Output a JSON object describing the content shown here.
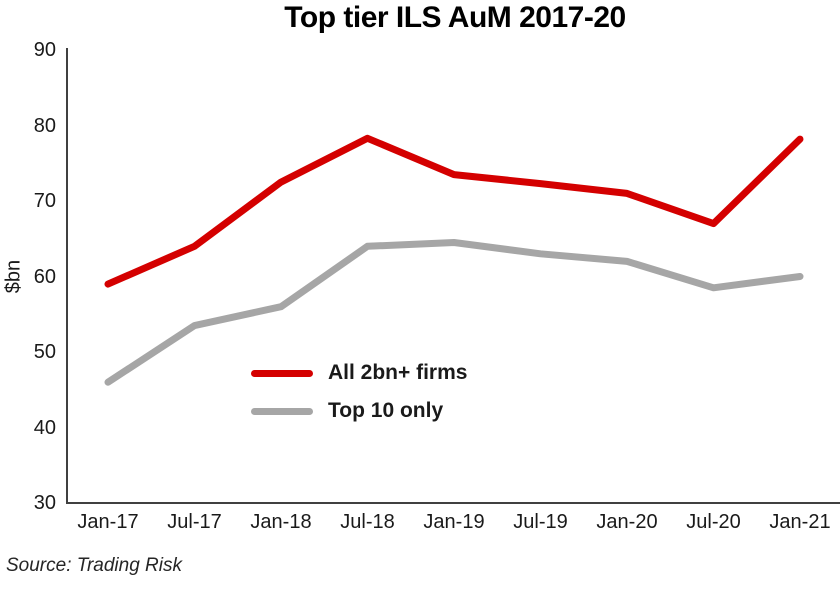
{
  "title": "Top tier ILS AuM 2017-20",
  "source_note": "Source: Trading Risk",
  "colors": {
    "series_red": "#d40000",
    "series_gray": "#a6a6a6",
    "axis": "#404040",
    "text": "#1a1a1a"
  },
  "chart_data": {
    "type": "line",
    "title": "Top tier ILS AuM 2017-20",
    "xlabel": "",
    "ylabel": "$bn",
    "ylim": [
      30,
      90
    ],
    "ytick_step": 10,
    "grid": false,
    "legend_position": "inside-lower-left",
    "categories": [
      "Jan-17",
      "Jul-17",
      "Jan-18",
      "Jul-18",
      "Jan-19",
      "Jul-19",
      "Jan-20",
      "Jul-20",
      "Jan-21"
    ],
    "series": [
      {
        "name": "All 2bn+ firms",
        "color": "#d40000",
        "values": [
          59,
          64,
          72.5,
          78.3,
          73.5,
          72.3,
          71,
          67,
          78.2
        ]
      },
      {
        "name": "Top 10 only",
        "color": "#a6a6a6",
        "values": [
          46,
          53.5,
          56,
          64,
          64.5,
          63,
          62,
          58.5,
          60
        ]
      }
    ]
  }
}
